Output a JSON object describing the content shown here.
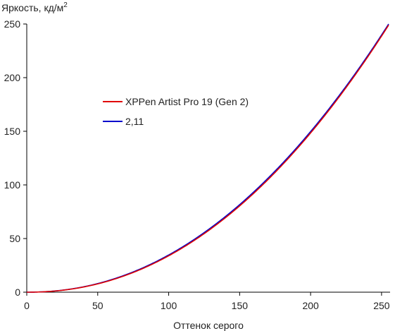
{
  "chart_data": {
    "type": "line",
    "title": "",
    "ylabel": "Яркость, кд/м",
    "ylabel_sup": "2",
    "xlabel": "Оттенок серого",
    "xlim": [
      0,
      256
    ],
    "ylim": [
      0,
      250
    ],
    "x_ticks": [
      0,
      50,
      100,
      150,
      200,
      250
    ],
    "x_tick_labels": [
      "0",
      "50",
      "100",
      "150",
      "200",
      "250"
    ],
    "y_ticks": [
      0,
      50,
      100,
      150,
      200,
      250
    ],
    "y_tick_labels": [
      "0",
      "50",
      "100",
      "150",
      "200",
      "250"
    ],
    "grid": false,
    "legend_position": "center-left",
    "series": [
      {
        "name": "XPPen Artist Pro 19 (Gen 2)",
        "color": "#e00000",
        "gamma": 2.13,
        "x": [
          0,
          16,
          32,
          48,
          64,
          80,
          96,
          112,
          128,
          144,
          160,
          176,
          192,
          208,
          224,
          240,
          255
        ],
        "y": [
          0,
          0.7,
          2.9,
          6.8,
          12.5,
          20.2,
          29.9,
          41.6,
          55.6,
          71.7,
          90.1,
          110.8,
          133.7,
          159.1,
          186.8,
          216.8,
          249
        ]
      },
      {
        "name": "2,11",
        "color": "#0000cc",
        "gamma": 2.11,
        "x": [
          0,
          16,
          32,
          48,
          64,
          80,
          96,
          112,
          128,
          144,
          160,
          176,
          192,
          208,
          224,
          240,
          255
        ],
        "y": [
          0,
          0.7,
          3.0,
          7.1,
          13.0,
          20.9,
          30.8,
          42.8,
          56.9,
          73.2,
          91.7,
          112.5,
          135.5,
          160.9,
          188.6,
          218.6,
          250
        ]
      }
    ]
  }
}
